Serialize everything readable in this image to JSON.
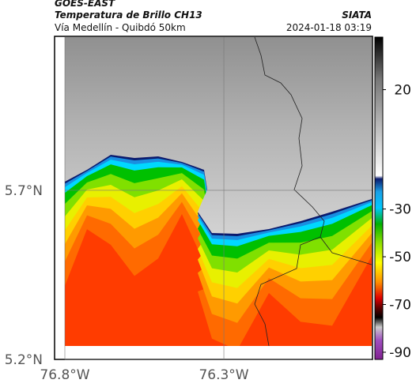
{
  "header": {
    "source": "GOES-EAST",
    "title": "Temperatura de Brillo CH13",
    "subtitle": "Vía Medellín - Quibdó 50km",
    "agency": "SIATA",
    "datetime": "2024-01-18 03:19"
  },
  "map": {
    "latlim": [
      5.2,
      6.153
    ],
    "lonlim": [
      -76.8,
      -75.835
    ],
    "latticks": [
      {
        "value": 5.7,
        "label": "5.7°N"
      },
      {
        "value": 5.2,
        "label": "5.2°N"
      }
    ],
    "lonticks": [
      {
        "value": -76.8,
        "label": "76.8°W"
      },
      {
        "value": -76.3,
        "label": "76.3°W"
      }
    ]
  },
  "colorbar": {
    "lim": [
      -93,
      42
    ],
    "ticks": [
      20,
      -30,
      -50,
      -70,
      -90
    ]
  }
}
